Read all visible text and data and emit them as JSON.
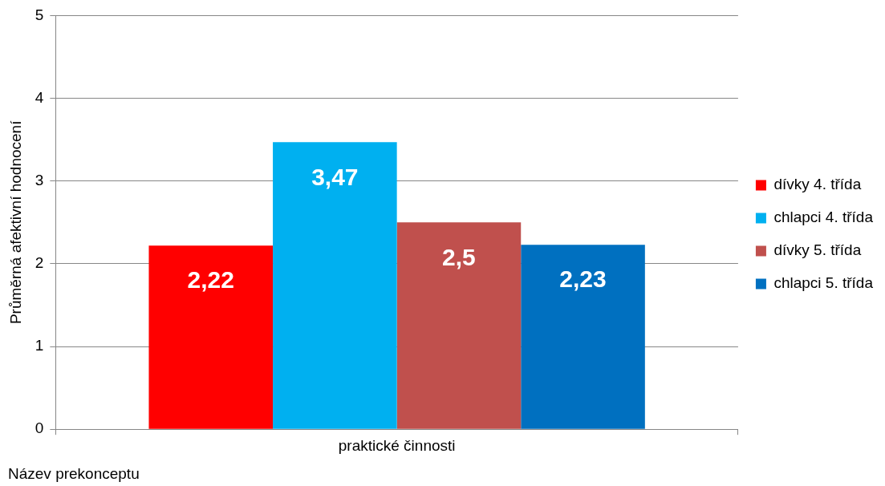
{
  "chart_data": {
    "type": "bar",
    "ylabel": "Průměrná afektivní hodnocení",
    "annotations": [
      "Název prekonceptu"
    ],
    "categories": [
      "praktické činnosti"
    ],
    "series": [
      {
        "name": "dívky 4. třída",
        "color": "#ff0000",
        "values": [
          2.22
        ],
        "value_labels": [
          "2,22"
        ]
      },
      {
        "name": "chlapci 4. třída",
        "color": "#00b0f0",
        "values": [
          3.47
        ],
        "value_labels": [
          "3,47"
        ]
      },
      {
        "name": "dívky 5. třída",
        "color": "#c0504d",
        "values": [
          2.5
        ],
        "value_labels": [
          "2,5"
        ]
      },
      {
        "name": "chlapci 5. třída",
        "color": "#0070c0",
        "values": [
          2.23
        ],
        "value_labels": [
          "2,23"
        ]
      }
    ],
    "ylim": [
      0,
      5
    ],
    "yticks": [
      0,
      1,
      2,
      3,
      4,
      5
    ],
    "grid": "y",
    "legend": "right"
  }
}
